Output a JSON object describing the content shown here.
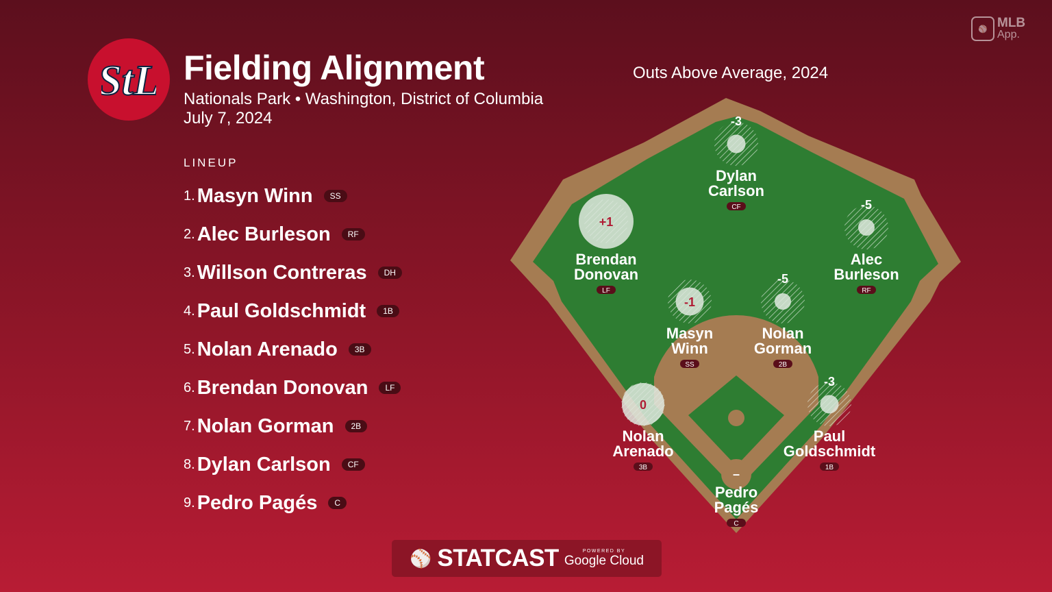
{
  "header": {
    "title": "Fielding Alignment",
    "venue": "Nationals Park • Washington, District of Columbia",
    "date": "July 7, 2024",
    "metric": "Outs Above Average, 2024",
    "team_logo": "STL"
  },
  "app_badge": {
    "line1": "MLB",
    "line2": "App."
  },
  "lineup": {
    "heading": "LINEUP",
    "players": [
      {
        "num": "1.",
        "name": "Masyn Winn",
        "pos": "SS"
      },
      {
        "num": "2.",
        "name": "Alec Burleson",
        "pos": "RF"
      },
      {
        "num": "3.",
        "name": "Willson Contreras",
        "pos": "DH"
      },
      {
        "num": "4.",
        "name": "Paul Goldschmidt",
        "pos": "1B"
      },
      {
        "num": "5.",
        "name": "Nolan Arenado",
        "pos": "3B"
      },
      {
        "num": "6.",
        "name": "Brendan Donovan",
        "pos": "LF"
      },
      {
        "num": "7.",
        "name": "Nolan Gorman",
        "pos": "2B"
      },
      {
        "num": "8.",
        "name": "Dylan Carlson",
        "pos": "CF"
      },
      {
        "num": "9.",
        "name": "Pedro Pagés",
        "pos": "C"
      }
    ]
  },
  "field": {
    "colors": {
      "grass": "#2e7d32",
      "dirt": "#a57c52",
      "value_text": "#b01c34"
    },
    "players": [
      {
        "first": "Dylan",
        "last": "Carlson",
        "pos": "CF",
        "oaa": "-3",
        "oaa_num": -3
      },
      {
        "first": "Brendan",
        "last": "Donovan",
        "pos": "LF",
        "oaa": "+1",
        "oaa_num": 1
      },
      {
        "first": "Alec",
        "last": "Burleson",
        "pos": "RF",
        "oaa": "-5",
        "oaa_num": -5
      },
      {
        "first": "Masyn",
        "last": "Winn",
        "pos": "SS",
        "oaa": "-1",
        "oaa_num": -1
      },
      {
        "first": "Nolan",
        "last": "Gorman",
        "pos": "2B",
        "oaa": "-5",
        "oaa_num": -5
      },
      {
        "first": "Nolan",
        "last": "Arenado",
        "pos": "3B",
        "oaa": "0",
        "oaa_num": 0
      },
      {
        "first": "Paul",
        "last": "Goldschmidt",
        "pos": "1B",
        "oaa": "-3",
        "oaa_num": -3
      },
      {
        "first": "Pedro",
        "last": "Pagés",
        "pos": "C",
        "oaa": "–",
        "oaa_num": null
      }
    ]
  },
  "footer": {
    "brand": "STATCAST",
    "powered": "POWERED BY",
    "partner": "Google Cloud"
  }
}
